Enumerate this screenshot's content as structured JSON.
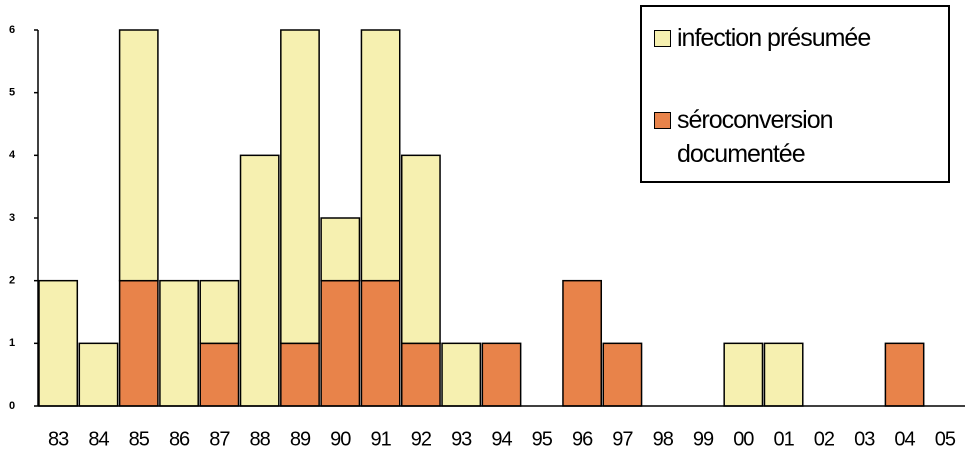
{
  "chart_data": {
    "type": "bar",
    "stacked": true,
    "categories": [
      "83",
      "84",
      "85",
      "86",
      "87",
      "88",
      "89",
      "90",
      "91",
      "92",
      "93",
      "94",
      "95",
      "96",
      "97",
      "98",
      "99",
      "00",
      "01",
      "02",
      "03",
      "04",
      "05"
    ],
    "series": [
      {
        "name": "séroconversion documentée",
        "color": "#e8834a",
        "values": [
          0,
          0,
          2,
          0,
          1,
          0,
          1,
          2,
          2,
          1,
          0,
          1,
          0,
          2,
          1,
          0,
          0,
          0,
          0,
          0,
          0,
          1,
          0
        ]
      },
      {
        "name": "infection présumée",
        "color": "#f6f0b0",
        "values": [
          2,
          1,
          4,
          2,
          1,
          4,
          5,
          1,
          4,
          3,
          1,
          0,
          0,
          0,
          0,
          0,
          0,
          1,
          1,
          0,
          0,
          0,
          0
        ]
      }
    ],
    "ylim": [
      0,
      6
    ],
    "yticks": [
      0,
      1,
      2,
      3,
      4,
      5,
      6
    ]
  }
}
